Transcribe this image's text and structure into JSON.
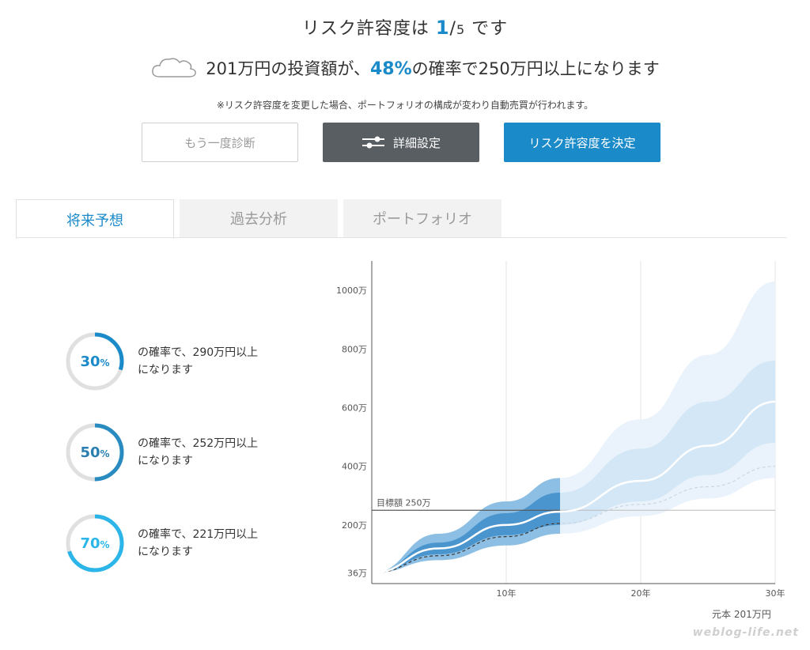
{
  "header": {
    "risk_prefix": "リスク許容度は",
    "risk_value": "1",
    "risk_slash": "/",
    "risk_max": "5",
    "risk_suffix": "です",
    "prob_prefix": "201万円の投資額が、",
    "prob_value": "48%",
    "prob_suffix": "の確率で250万円以上になります",
    "note": "※リスク許容度を変更した場合、ポートフォリオの構成が変わり自動売買が行われます。"
  },
  "buttons": {
    "rediagnose": "もう一度診断",
    "detail": "詳細設定",
    "decide": "リスク許容度を決定"
  },
  "tabs": {
    "forecast": "将来予想",
    "past": "過去分析",
    "portfolio": "ポートフォリオ"
  },
  "probabilities": [
    {
      "pct": "30",
      "unit": "%",
      "line1": "の確率で、290万円以上",
      "line2": "になります",
      "fraction": 0.3,
      "color": "#1b8ac9"
    },
    {
      "pct": "50",
      "unit": "%",
      "line1": "の確率で、252万円以上",
      "line2": "になります",
      "fraction": 0.5,
      "color": "#2a8bc0"
    },
    {
      "pct": "70",
      "unit": "%",
      "line1": "の確率で、221万円以上",
      "line2": "になります",
      "fraction": 0.7,
      "color": "#2bb5e8"
    }
  ],
  "chart_data": {
    "type": "area",
    "x_ticks": [
      "10年",
      "20年",
      "30年"
    ],
    "x_tick_values": [
      10,
      20,
      30
    ],
    "y_ticks": [
      "36万",
      "200万",
      "400万",
      "600万",
      "800万",
      "1000万"
    ],
    "y_tick_values": [
      36,
      200,
      400,
      600,
      800,
      1000
    ],
    "xlim": [
      0,
      30
    ],
    "ylim": [
      0,
      1100
    ],
    "target_label": "目標額 250万",
    "target_value": 250,
    "principal_label": "元本 201万円",
    "median_x": [
      0,
      5,
      10,
      14,
      20,
      25,
      30
    ],
    "median_y": [
      36,
      120,
      200,
      245,
      350,
      470,
      620
    ],
    "baseline_y": [
      36,
      95,
      160,
      205,
      270,
      330,
      400
    ],
    "band_outer_upper": [
      36,
      170,
      280,
      360,
      560,
      780,
      1030
    ],
    "band_outer_lower": [
      36,
      80,
      130,
      170,
      230,
      290,
      360
    ],
    "band_inner_upper": [
      36,
      140,
      240,
      310,
      460,
      620,
      760
    ],
    "band_inner_lower": [
      36,
      100,
      165,
      200,
      280,
      370,
      480
    ],
    "highlight_x_end": 14,
    "grid": true
  },
  "credit": "weblog-life.net"
}
